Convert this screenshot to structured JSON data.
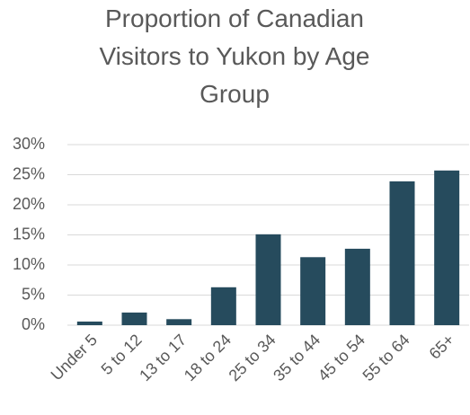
{
  "chart_data": {
    "type": "bar",
    "title": "Proportion of Canadian Visitors to Yukon by Age Group",
    "categories": [
      "Under 5",
      "5 to 12",
      "13 to 17",
      "18 to 24",
      "25 to 34",
      "35 to 44",
      "45 to 54",
      "55 to 64",
      "65+"
    ],
    "values": [
      0.6,
      2.1,
      1.0,
      6.3,
      15.1,
      11.3,
      12.7,
      23.9,
      25.7
    ],
    "color": "#264b5d",
    "ylim": [
      0,
      30
    ],
    "yticks": [
      {
        "value": 0,
        "label": "0%"
      },
      {
        "value": 5,
        "label": "5%"
      },
      {
        "value": 10,
        "label": "10%"
      },
      {
        "value": 15,
        "label": "15%"
      },
      {
        "value": 20,
        "label": "20%"
      },
      {
        "value": 25,
        "label": "25%"
      },
      {
        "value": 30,
        "label": "30%"
      }
    ],
    "grid": true
  }
}
